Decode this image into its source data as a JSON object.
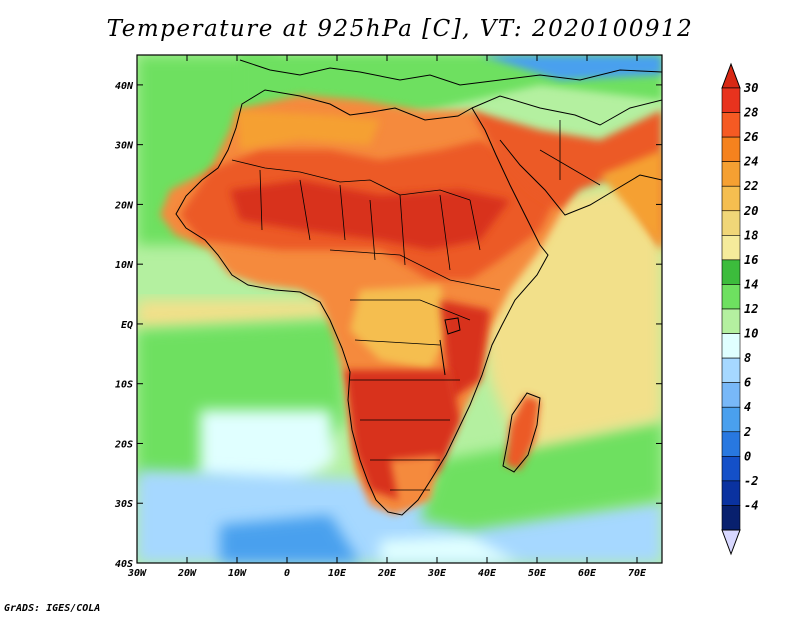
{
  "title": "Temperature at 925hPa [C], VT: 2020100912",
  "footer": "GrADS: IGES/COLA",
  "colors": {
    "ocean_cold_blue": "#4aa0ee",
    "ocean_light_blue": "#a6d8ff",
    "ocean_pale": "#e0ffff",
    "ocean_green_pale": "#b4f0a0",
    "ocean_green": "#6ee060",
    "ocean_green_dark": "#3cbc3c",
    "ocean_yellow": "#f2e08a",
    "land_orange": "#f58a3c",
    "land_red_orange": "#ec5a28",
    "land_red": "#d8321e",
    "border_black": "#000000"
  },
  "chart_data": {
    "type": "heatmap",
    "variable": "Temperature at 925hPa",
    "units": "C",
    "valid_time": "2020100912",
    "projection": "latlon",
    "xlim": [
      -30,
      75
    ],
    "ylim": [
      -40,
      45
    ],
    "x_ticks": [
      {
        "value": -30,
        "label": "30W"
      },
      {
        "value": -20,
        "label": "20W"
      },
      {
        "value": -10,
        "label": "10W"
      },
      {
        "value": 0,
        "label": "0"
      },
      {
        "value": 10,
        "label": "10E"
      },
      {
        "value": 20,
        "label": "20E"
      },
      {
        "value": 30,
        "label": "30E"
      },
      {
        "value": 40,
        "label": "40E"
      },
      {
        "value": 50,
        "label": "50E"
      },
      {
        "value": 60,
        "label": "60E"
      },
      {
        "value": 70,
        "label": "70E"
      }
    ],
    "y_ticks": [
      {
        "value": 40,
        "label": "40N"
      },
      {
        "value": 30,
        "label": "30N"
      },
      {
        "value": 20,
        "label": "20N"
      },
      {
        "value": 10,
        "label": "10N"
      },
      {
        "value": 0,
        "label": "EQ"
      },
      {
        "value": -10,
        "label": "10S"
      },
      {
        "value": -20,
        "label": "20S"
      },
      {
        "value": -30,
        "label": "30S"
      },
      {
        "value": -40,
        "label": "40S"
      }
    ],
    "colorbar": {
      "levels": [
        "30",
        "28",
        "26",
        "24",
        "22",
        "20",
        "18",
        "16",
        "14",
        "12",
        "10",
        "8",
        "6",
        "4",
        "2",
        "0",
        "-2",
        "-4"
      ],
      "colors": [
        "#e8331e",
        "#f55a23",
        "#f5821e",
        "#f5a032",
        "#f5be50",
        "#f0d678",
        "#f5eb9b",
        "#3cbc3c",
        "#6ee060",
        "#b4f0a0",
        "#e0ffff",
        "#a6d8ff",
        "#78b8f8",
        "#4aa0ee",
        "#2878e0",
        "#1450c8",
        "#0a32a0",
        "#08206e"
      ],
      "top_arrow_color": "#d82814",
      "bottom_arrow_color": "#d8d8ff"
    }
  }
}
